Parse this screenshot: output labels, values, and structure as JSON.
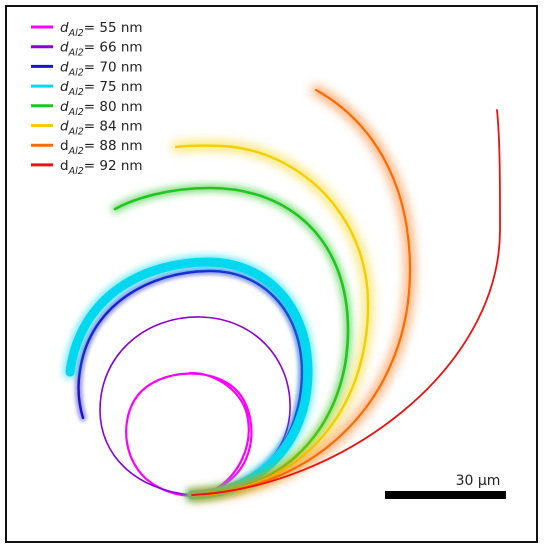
{
  "legend": {
    "items": [
      {
        "symbol": "d",
        "subscript": "Al2",
        "value": "= 55 nm",
        "italic": true,
        "color": "#ff00ff"
      },
      {
        "symbol": "d",
        "subscript": "Al2",
        "value": "= 66 nm",
        "italic": true,
        "color": "#8a00d4"
      },
      {
        "symbol": "d",
        "subscript": "Al2",
        "value": "= 70 nm",
        "italic": true,
        "color": "#1a14c8"
      },
      {
        "symbol": "d",
        "subscript": "Al2",
        "value": "= 75 nm",
        "italic": true,
        "color": "#00d8f0"
      },
      {
        "symbol": "d",
        "subscript": "Al2",
        "value": "= 80 nm",
        "italic": true,
        "color": "#22c422"
      },
      {
        "symbol": "d",
        "subscript": "Al2",
        "value": "= 84 nm",
        "italic": true,
        "color": "#f2d000"
      },
      {
        "symbol": "d",
        "subscript": "Al2",
        "value": "= 88 nm",
        "italic": false,
        "color": "#ff6a00"
      },
      {
        "symbol": "d",
        "subscript": "Al2",
        "value": "= 92 nm",
        "italic": false,
        "color": "#ee1111"
      }
    ]
  },
  "scale_bar": {
    "label": "30 µm"
  }
}
